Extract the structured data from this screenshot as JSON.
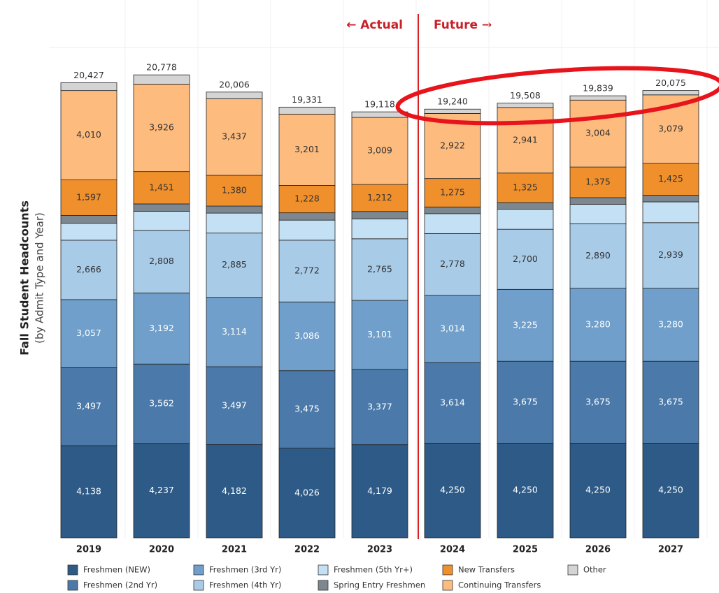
{
  "chart_data": {
    "type": "stacked-bar",
    "axis_title": "Fall Student Headcounts",
    "axis_subtitle": "(by Admit Type and Year)",
    "annotations": [
      "← Actual",
      "Future →"
    ],
    "categories": [
      "2019",
      "2020",
      "2021",
      "2022",
      "2023",
      "2024",
      "2025",
      "2026",
      "2027"
    ],
    "series": [
      {
        "name": "Freshmen (NEW)",
        "color": "#2d5a86",
        "values": [
          4138,
          4237,
          4182,
          4026,
          4179,
          4250,
          4250,
          4250,
          4250
        ],
        "value_labels": [
          "4,138",
          "4,237",
          "4,182",
          "4,026",
          "4,179",
          "4,250",
          "4,250",
          "4,250",
          "4,250"
        ]
      },
      {
        "name": "Freshmen (2nd Yr)",
        "color": "#4b7aaa",
        "values": [
          3497,
          3562,
          3497,
          3475,
          3377,
          3614,
          3675,
          3675,
          3675
        ],
        "value_labels": [
          "3,497",
          "3,562",
          "3,497",
          "3,475",
          "3,377",
          "3,614",
          "3,675",
          "3,675",
          "3,675"
        ]
      },
      {
        "name": "Freshmen (3rd Yr)",
        "color": "#6f9fca",
        "values": [
          3057,
          3192,
          3114,
          3086,
          3101,
          3014,
          3225,
          3280,
          3280
        ],
        "value_labels": [
          "3,057",
          "3,192",
          "3,114",
          "3,086",
          "3,101",
          "3,014",
          "3,225",
          "3,280",
          "3,280"
        ]
      },
      {
        "name": "Freshmen (4th Yr)",
        "color": "#a8cbe8",
        "values": [
          2666,
          2808,
          2885,
          2772,
          2765,
          2778,
          2700,
          2890,
          2939
        ],
        "value_labels": [
          "2,666",
          "2,808",
          "2,885",
          "2,772",
          "2,765",
          "2,778",
          "2,700",
          "2,890",
          "2,939"
        ]
      },
      {
        "name": "Freshmen (5th Yr+)",
        "color": "#c4e0f4",
        "values": [
          759,
          857,
          895,
          899,
          895,
          893,
          897,
          872,
          933
        ]
      },
      {
        "name": "Spring Entry Freshmen",
        "color": "#7c8790",
        "values": [
          350,
          330,
          316,
          330,
          330,
          300,
          300,
          300,
          300
        ]
      },
      {
        "name": "New Transfers",
        "color": "#f0902c",
        "values": [
          1597,
          1451,
          1380,
          1228,
          1212,
          1275,
          1325,
          1375,
          1425
        ],
        "value_labels": [
          "1,597",
          "1,451",
          "1,380",
          "1,228",
          "1,212",
          "1,275",
          "1,325",
          "1,375",
          "1,425"
        ]
      },
      {
        "name": "Continuing Transfers",
        "color": "#fdbb7e",
        "values": [
          4010,
          3926,
          3437,
          3201,
          3009,
          2922,
          2941,
          3004,
          3079
        ],
        "value_labels": [
          "4,010",
          "3,926",
          "3,437",
          "3,201",
          "3,009",
          "2,922",
          "2,941",
          "3,004",
          "3,079"
        ]
      },
      {
        "name": "Other",
        "color": "#d4d4d4",
        "values": [
          353,
          415,
          300,
          314,
          250,
          194,
          195,
          193,
          194
        ]
      }
    ],
    "totals": [
      20427,
      20778,
      20006,
      19331,
      19118,
      19240,
      19508,
      19839,
      20075
    ],
    "total_labels": [
      "20,427",
      "20,778",
      "20,006",
      "19,331",
      "19,118",
      "19,240",
      "19,508",
      "19,839",
      "20,075"
    ]
  }
}
